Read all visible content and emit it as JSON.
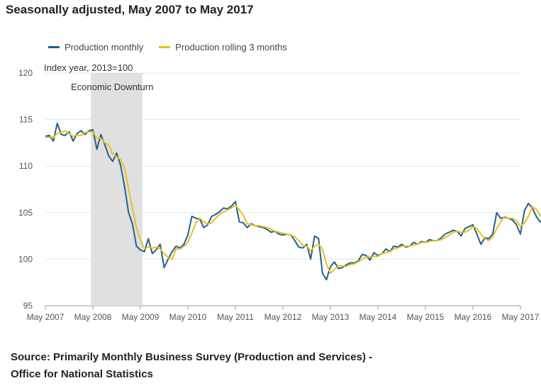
{
  "title": "Seasonally adjusted, May 2007 to May 2017",
  "source_line1": "Source: Primarily Monthly Business Survey (Production and Services) -",
  "source_line2": "Office for National Statistics",
  "chart_data": {
    "type": "line",
    "ylabel": "Index year, 2013=100",
    "ylim": [
      95,
      120
    ],
    "yticks": [
      95,
      100,
      105,
      110,
      115,
      120
    ],
    "xticks": [
      "May 2007",
      "May 2008",
      "May 2009",
      "May 2010",
      "May 2011",
      "May 2012",
      "May 2013",
      "May 2014",
      "May 2015",
      "May 2016",
      "May 2017"
    ],
    "x_start": "May 2007",
    "x_end": "May 2017",
    "grid": "horizontal",
    "legend_position": "top-left",
    "annotation": {
      "label": "Economic Downturn",
      "from": "Q2 2008",
      "to": "Q2 2009",
      "color": "#e0e0e0"
    },
    "series": [
      {
        "name": "Production monthly",
        "color": "#206095",
        "values": [
          113.2,
          113.3,
          112.7,
          114.6,
          113.4,
          113.3,
          113.7,
          112.7,
          113.5,
          113.8,
          113.4,
          113.8,
          113.9,
          111.8,
          113.4,
          112.3,
          111.1,
          110.5,
          111.4,
          110.1,
          107.8,
          105.0,
          103.8,
          101.4,
          101.0,
          100.8,
          102.2,
          100.6,
          101.0,
          101.6,
          99.1,
          100.0,
          100.8,
          101.4,
          101.2,
          101.6,
          102.6,
          104.6,
          104.4,
          104.3,
          103.4,
          103.7,
          104.6,
          104.8,
          105.1,
          105.5,
          105.4,
          105.7,
          106.2,
          104.0,
          103.9,
          103.4,
          103.8,
          103.6,
          103.5,
          103.4,
          103.2,
          102.9,
          103.0,
          102.7,
          102.6,
          102.7,
          102.6,
          102.0,
          101.3,
          101.2,
          101.6,
          100.0,
          102.5,
          102.2,
          98.5,
          97.8,
          99.2,
          99.7,
          99.0,
          99.1,
          99.4,
          99.6,
          99.6,
          99.8,
          100.5,
          100.4,
          99.9,
          100.7,
          100.4,
          100.6,
          101.1,
          100.8,
          101.4,
          101.3,
          101.6,
          101.3,
          101.4,
          101.8,
          101.6,
          101.9,
          101.8,
          102.1,
          102.0,
          102.0,
          102.3,
          102.7,
          102.9,
          103.1,
          103.0,
          102.5,
          103.3,
          103.5,
          103.7,
          102.7,
          101.6,
          102.3,
          102.2,
          102.7,
          105.0,
          104.4,
          104.5,
          104.4,
          104.2,
          103.7,
          102.7,
          105.2,
          106.0,
          105.5,
          104.6,
          104.0,
          104.2,
          104.1
        ]
      },
      {
        "name": "Production rolling 3 months",
        "color": "#e5c01f",
        "values": [
          113.1,
          113.1,
          113.1,
          113.5,
          113.6,
          113.8,
          113.5,
          113.2,
          113.3,
          113.3,
          113.6,
          113.7,
          113.7,
          113.0,
          113.0,
          112.5,
          112.3,
          111.3,
          111.0,
          110.7,
          109.8,
          107.6,
          105.5,
          103.4,
          102.1,
          101.1,
          101.3,
          101.2,
          101.3,
          101.1,
          100.6,
          100.2,
          100.0,
          101.1,
          101.1,
          101.4,
          101.8,
          102.8,
          103.9,
          104.4,
          104.0,
          103.8,
          103.9,
          104.4,
          104.8,
          105.1,
          105.3,
          105.5,
          105.8,
          105.3,
          104.7,
          103.8,
          103.7,
          103.6,
          103.6,
          103.5,
          103.4,
          103.2,
          103.0,
          102.9,
          102.8,
          102.7,
          102.6,
          102.4,
          102.0,
          101.5,
          101.4,
          100.9,
          101.4,
          101.6,
          101.1,
          99.5,
          98.5,
          98.9,
          99.3,
          99.3,
          99.2,
          99.4,
          99.5,
          99.7,
          100.0,
          100.2,
          100.3,
          100.3,
          100.3,
          100.6,
          100.7,
          100.8,
          101.1,
          101.2,
          101.4,
          101.4,
          101.4,
          101.5,
          101.6,
          101.8,
          101.8,
          101.9,
          102.0,
          102.0,
          102.1,
          102.3,
          102.6,
          102.9,
          103.0,
          102.9,
          102.9,
          103.1,
          103.5,
          103.3,
          102.7,
          102.2,
          102.0,
          102.4,
          103.3,
          104.0,
          104.6,
          104.4,
          104.4,
          104.1,
          103.5,
          103.9,
          104.6,
          105.6,
          105.4,
          104.7,
          104.3,
          104.1
        ]
      }
    ]
  }
}
